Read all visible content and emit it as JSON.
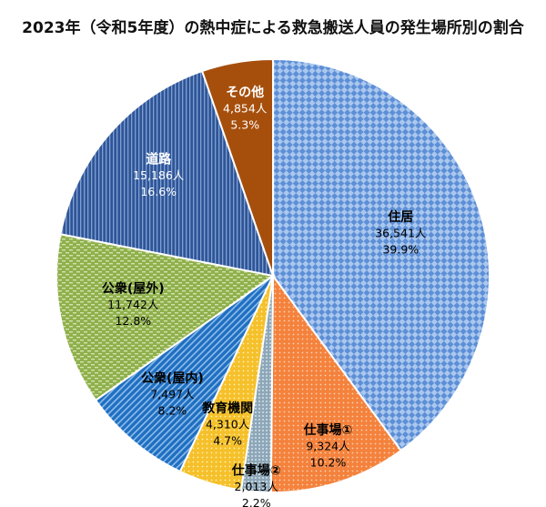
{
  "chart_data": {
    "type": "pie",
    "title": "2023年（令和5年度）の熱中症による救急搬送人員の発生場所別の割合",
    "slices": [
      {
        "label": "住居",
        "count": "36,541人",
        "value": 39.9,
        "percent": "39.9%",
        "color": "#7aa6e0",
        "pattern": "checker"
      },
      {
        "label": "仕事場①",
        "count": "9,324人",
        "value": 10.2,
        "percent": "10.2%",
        "color": "#f4823c",
        "pattern": "dots"
      },
      {
        "label": "仕事場②",
        "count": "2,013人",
        "value": 2.2,
        "percent": "2.2%",
        "color": "#9fb5c4",
        "pattern": "grid"
      },
      {
        "label": "教育機関",
        "count": "4,310人",
        "value": 4.7,
        "percent": "4.7%",
        "color": "#f5c02a",
        "pattern": "dots"
      },
      {
        "label": "公衆(屋内)",
        "count": "7,497人",
        "value": 8.2,
        "percent": "8.2%",
        "color": "#1f6fc2",
        "pattern": "diagonal"
      },
      {
        "label": "公衆(屋外)",
        "count": "11,742人",
        "value": 12.8,
        "percent": "12.8%",
        "color": "#9bbb59",
        "pattern": "dashes"
      },
      {
        "label": "道路",
        "count": "15,186人",
        "value": 16.6,
        "percent": "16.6%",
        "color": "#2f5597",
        "pattern": "vertical"
      },
      {
        "label": "その他",
        "count": "4,854人",
        "value": 5.3,
        "percent": "5.3%",
        "color": "#a64f0c",
        "pattern": "solid"
      }
    ]
  }
}
